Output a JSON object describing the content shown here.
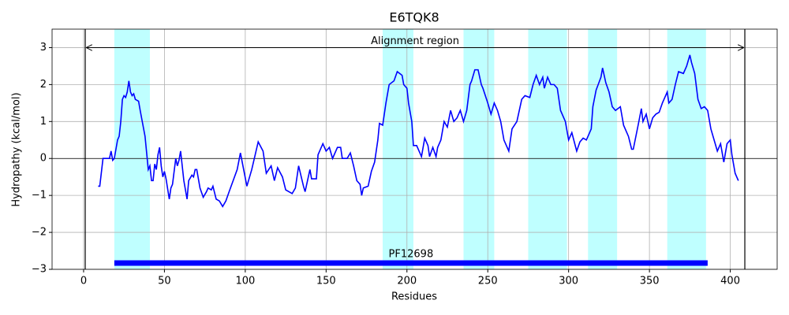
{
  "chart_data": {
    "type": "line",
    "title": "E6TQK8",
    "x_label": "Residues",
    "y_label": "Hydropathy (kcal/mol)",
    "color": "#0000ff",
    "span_color": "#bfffff",
    "grid": true,
    "xlim": [
      -19.5,
      429
    ],
    "ylim": [
      -3,
      3.5
    ],
    "xticks": [
      0,
      50,
      100,
      150,
      200,
      250,
      300,
      350,
      400
    ],
    "yticks": [
      {
        "value": -3,
        "label": "−3"
      },
      {
        "value": -2,
        "label": "−2"
      },
      {
        "value": -1,
        "label": "−1"
      },
      0,
      1,
      2,
      3
    ],
    "spans": [
      [
        19,
        41
      ],
      [
        185,
        204
      ],
      [
        235,
        254
      ],
      [
        275,
        299
      ],
      [
        312,
        330
      ],
      [
        361,
        385
      ]
    ],
    "alignment": {
      "label": "Alignment region",
      "start": 1,
      "end": 409,
      "y": 3
    },
    "domain": {
      "label": "PF12698",
      "start": 19,
      "end": 386,
      "y": -2.83,
      "color": "#0000ff"
    },
    "x": [
      9,
      10,
      12,
      16,
      17,
      18,
      19,
      21,
      22,
      23,
      24,
      25,
      26,
      27,
      28,
      29,
      30,
      31,
      32,
      34,
      35,
      38,
      40,
      41,
      42,
      43,
      44,
      45,
      46,
      47,
      48,
      49,
      50,
      51,
      53,
      54,
      55,
      57,
      58,
      59,
      60,
      62,
      64,
      65,
      67,
      68,
      69,
      70,
      72,
      74,
      76,
      77,
      79,
      80,
      82,
      84,
      86,
      88,
      90,
      95,
      97,
      101,
      104,
      108,
      111,
      113,
      116,
      118,
      120,
      123,
      125,
      129,
      131,
      133,
      136,
      137,
      139,
      140,
      141,
      144,
      145,
      148,
      150,
      152,
      154,
      157,
      159,
      160,
      163,
      165,
      167,
      169,
      171,
      172,
      173,
      176,
      178,
      180,
      182,
      183,
      185,
      187,
      189,
      192,
      194,
      197,
      198,
      200,
      201,
      203,
      204,
      206,
      209,
      211,
      213,
      214,
      216,
      218,
      219,
      221,
      223,
      225,
      227,
      229,
      231,
      233,
      235,
      237,
      239,
      240,
      242,
      244,
      246,
      247,
      250,
      252,
      254,
      256,
      258,
      260,
      263,
      265,
      268,
      271,
      273,
      276,
      278,
      280,
      282,
      284,
      285,
      287,
      289,
      291,
      293,
      295,
      298,
      300,
      302,
      305,
      307,
      309,
      311,
      314,
      315,
      317,
      320,
      321,
      323,
      325,
      327,
      329,
      332,
      334,
      337,
      339,
      340,
      343,
      345,
      346,
      348,
      350,
      352,
      354,
      356,
      358,
      361,
      362,
      364,
      366,
      368,
      371,
      373,
      375,
      376,
      378,
      380,
      382,
      384,
      386,
      388,
      390,
      392,
      394,
      396,
      398,
      400,
      401,
      403,
      405
    ],
    "values": [
      -0.75,
      -0.75,
      0,
      0,
      0.2,
      -0.05,
      0,
      0.5,
      0.6,
      1.0,
      1.6,
      1.7,
      1.65,
      1.8,
      2.1,
      1.8,
      1.7,
      1.75,
      1.6,
      1.55,
      1.3,
      0.6,
      -0.3,
      -0.2,
      -0.6,
      -0.6,
      -0.15,
      -0.3,
      0.1,
      0.3,
      -0.2,
      -0.5,
      -0.35,
      -0.55,
      -1.1,
      -0.8,
      -0.7,
      0,
      -0.2,
      -0.05,
      0.2,
      -0.6,
      -1.1,
      -0.6,
      -0.45,
      -0.5,
      -0.3,
      -0.3,
      -0.8,
      -1.05,
      -0.9,
      -0.8,
      -0.85,
      -0.75,
      -1.1,
      -1.15,
      -1.3,
      -1.15,
      -0.9,
      -0.3,
      0.15,
      -0.75,
      -0.3,
      0.45,
      0.2,
      -0.4,
      -0.2,
      -0.6,
      -0.25,
      -0.5,
      -0.85,
      -0.95,
      -0.8,
      -0.2,
      -0.75,
      -0.9,
      -0.5,
      -0.3,
      -0.55,
      -0.55,
      0.1,
      0.4,
      0.2,
      0.3,
      0,
      0.3,
      0.3,
      0,
      0,
      0.15,
      -0.2,
      -0.6,
      -0.7,
      -1.0,
      -0.8,
      -0.75,
      -0.35,
      -0.1,
      0.5,
      0.95,
      0.9,
      1.5,
      2.0,
      2.1,
      2.35,
      2.25,
      2.0,
      1.9,
      1.5,
      1.0,
      0.35,
      0.35,
      0.05,
      0.55,
      0.35,
      0.05,
      0.3,
      0.05,
      0.3,
      0.5,
      1.0,
      0.85,
      1.3,
      1.0,
      1.1,
      1.3,
      1.0,
      1.3,
      2.0,
      2.1,
      2.4,
      2.4,
      2.0,
      1.9,
      1.5,
      1.2,
      1.5,
      1.3,
      1.0,
      0.5,
      0.2,
      0.8,
      1.0,
      1.6,
      1.7,
      1.65,
      2.0,
      2.25,
      2.0,
      2.2,
      1.9,
      2.2,
      2.0,
      2.0,
      1.9,
      1.3,
      1.0,
      0.5,
      0.7,
      0.2,
      0.45,
      0.55,
      0.5,
      0.8,
      1.4,
      1.85,
      2.2,
      2.45,
      2.05,
      1.8,
      1.4,
      1.3,
      1.4,
      0.9,
      0.6,
      0.25,
      0.25,
      0.9,
      1.35,
      1.0,
      1.2,
      0.8,
      1.1,
      1.2,
      1.25,
      1.5,
      1.8,
      1.5,
      1.6,
      2.0,
      2.35,
      2.3,
      2.5,
      2.8,
      2.6,
      2.3,
      1.6,
      1.35,
      1.4,
      1.3,
      0.8,
      0.5,
      0.2,
      0.4,
      -0.1,
      0.4,
      0.5,
      0.1,
      -0.4,
      -0.6
    ]
  }
}
